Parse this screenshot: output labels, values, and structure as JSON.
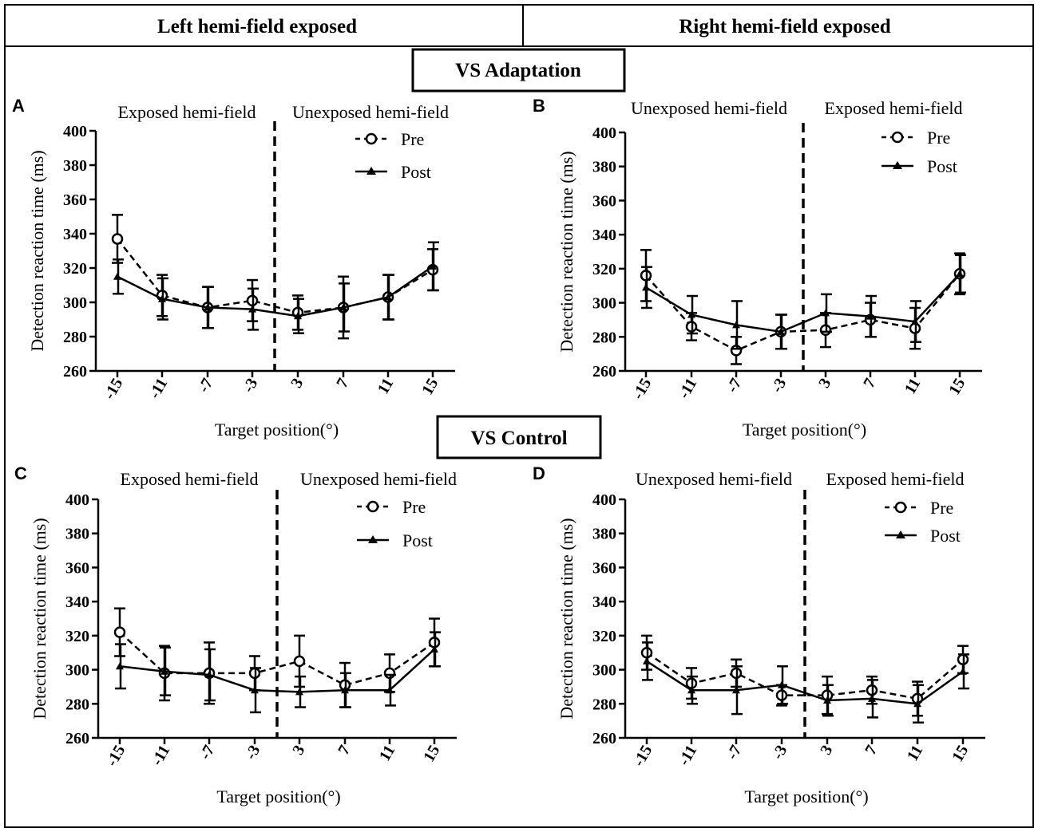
{
  "header": {
    "left": "Left hemi-field exposed",
    "right": "Right hemi-field exposed",
    "section_adaptation": "VS Adaptation",
    "section_control": "VS Control"
  },
  "legend": {
    "pre": "Pre",
    "post": "Post"
  },
  "colors": {
    "ink": "#000000",
    "background": "#ffffff"
  },
  "chart_data": [
    {
      "panel": "A",
      "type": "line",
      "region_left": "Exposed hemi-field",
      "region_right": "Unexposed hemi-field",
      "ylabel": "Detection reaction time (ms)",
      "xlabel": "Target position(°)",
      "ylim": [
        260,
        400
      ],
      "yticks": [
        260,
        280,
        300,
        320,
        340,
        360,
        380,
        400
      ],
      "categories": [
        "-15",
        "-11",
        "-7",
        "-3",
        "3",
        "7",
        "11",
        "15"
      ],
      "series": [
        {
          "name": "Pre",
          "style": "dashed-open-circle",
          "values": [
            337,
            304,
            297,
            301,
            294,
            297,
            303,
            319
          ],
          "errors": [
            14,
            12,
            12,
            12,
            10,
            18,
            13,
            12
          ]
        },
        {
          "name": "Post",
          "style": "solid-triangle",
          "values": [
            315,
            302,
            297,
            296,
            292,
            297,
            303,
            321
          ],
          "errors": [
            10,
            12,
            12,
            12,
            10,
            14,
            13,
            14
          ]
        }
      ]
    },
    {
      "panel": "B",
      "type": "line",
      "region_left": "Unexposed hemi-field",
      "region_right": "Exposed hemi-field",
      "ylabel": "Detection reaction time (ms)",
      "xlabel": "Target position(°)",
      "ylim": [
        260,
        400
      ],
      "yticks": [
        260,
        280,
        300,
        320,
        340,
        360,
        380,
        400
      ],
      "categories": [
        "-15",
        "-11",
        "-7",
        "-3",
        "3",
        "7",
        "11",
        "15"
      ],
      "series": [
        {
          "name": "Pre",
          "style": "dashed-open-circle",
          "values": [
            316,
            286,
            272,
            283,
            284,
            290,
            285,
            317
          ],
          "errors": [
            15,
            8,
            8,
            10,
            10,
            10,
            12,
            12
          ]
        },
        {
          "name": "Post",
          "style": "solid-triangle",
          "values": [
            309,
            293,
            287,
            283,
            294,
            292,
            289,
            317
          ],
          "errors": [
            12,
            11,
            14,
            10,
            11,
            12,
            12,
            11
          ]
        }
      ]
    },
    {
      "panel": "C",
      "type": "line",
      "region_left": "Exposed hemi-field",
      "region_right": "Unexposed hemi-field",
      "ylabel": "Detection reaction time (ms)",
      "xlabel": "Target position(°)",
      "ylim": [
        260,
        400
      ],
      "yticks": [
        260,
        280,
        300,
        320,
        340,
        360,
        380,
        400
      ],
      "categories": [
        "-15",
        "-11",
        "-7",
        "-3",
        "3",
        "7",
        "11",
        "15"
      ],
      "series": [
        {
          "name": "Pre",
          "style": "dashed-open-circle",
          "values": [
            322,
            298,
            298,
            298,
            305,
            291,
            298,
            316
          ],
          "errors": [
            14,
            16,
            18,
            10,
            15,
            13,
            11,
            14
          ]
        },
        {
          "name": "Post",
          "style": "solid-triangle",
          "values": [
            302,
            299,
            297,
            288,
            287,
            288,
            288,
            312
          ],
          "errors": [
            13,
            14,
            15,
            13,
            9,
            10,
            9,
            10
          ]
        }
      ]
    },
    {
      "panel": "D",
      "type": "line",
      "region_left": "Unexposed hemi-field",
      "region_right": "Exposed hemi-field",
      "ylabel": "Detection reaction time (ms)",
      "xlabel": "Target position(°)",
      "ylim": [
        260,
        400
      ],
      "yticks": [
        260,
        280,
        300,
        320,
        340,
        360,
        380,
        400
      ],
      "categories": [
        "-15",
        "-11",
        "-7",
        "-3",
        "3",
        "7",
        "11",
        "15"
      ],
      "series": [
        {
          "name": "Pre",
          "style": "dashed-open-circle",
          "values": [
            310,
            292,
            298,
            285,
            285,
            288,
            283,
            306
          ],
          "errors": [
            10,
            9,
            8,
            6,
            11,
            8,
            10,
            8
          ]
        },
        {
          "name": "Post",
          "style": "solid-triangle",
          "values": [
            305,
            288,
            288,
            291,
            282,
            283,
            280,
            299
          ],
          "errors": [
            11,
            8,
            14,
            11,
            9,
            11,
            11,
            10
          ]
        }
      ]
    }
  ]
}
